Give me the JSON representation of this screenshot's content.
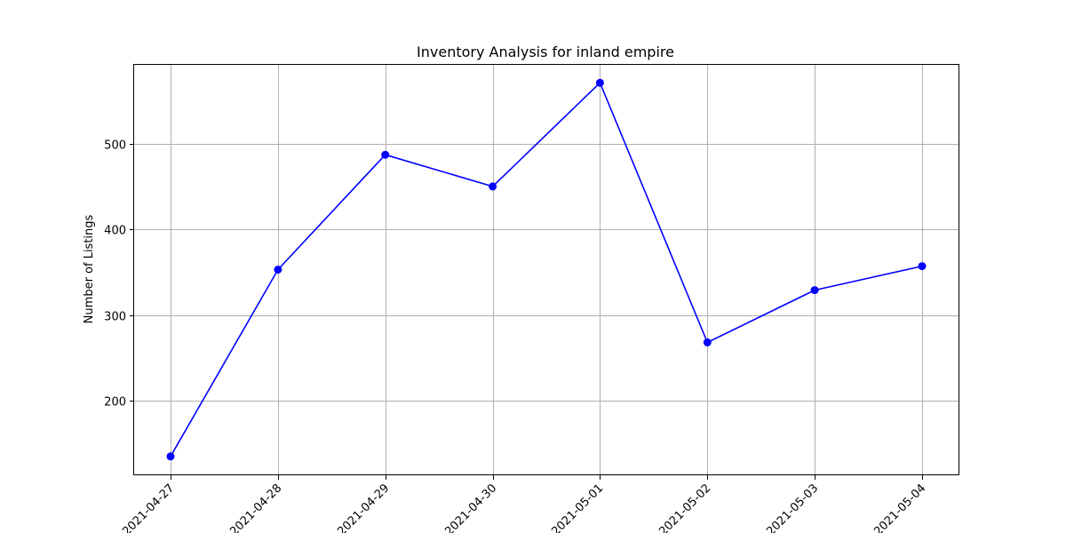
{
  "chart_data": {
    "type": "line",
    "title": "Inventory Analysis for inland empire",
    "xlabel": "",
    "ylabel": "Number of Listings",
    "categories": [
      "2021-04-27",
      "2021-04-28",
      "2021-04-29",
      "2021-04-30",
      "2021-05-01",
      "2021-05-02",
      "2021-05-03",
      "2021-05-04"
    ],
    "series": [
      {
        "values": [
          135,
          353,
          487,
          450,
          571,
          268,
          329,
          357
        ],
        "color": "#0000ff",
        "marker": "circle"
      }
    ],
    "yticks": [
      200,
      300,
      400,
      500
    ],
    "ylim": [
      113,
      593
    ],
    "grid": true,
    "x_tick_rotation": "45deg"
  }
}
